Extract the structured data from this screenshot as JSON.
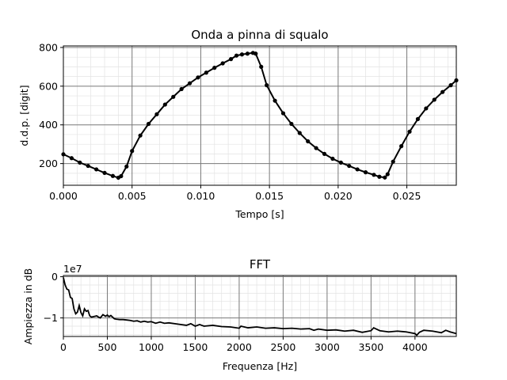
{
  "chart_data": [
    {
      "type": "scatter",
      "title": "Onda a pinna di squalo",
      "xlabel": "Tempo [s]",
      "ylabel": "d.d.p. [digit]",
      "xlim": [
        0.0,
        0.0286
      ],
      "ylim": [
        88,
        808
      ],
      "xticks": [
        0.0,
        0.005,
        0.01,
        0.015,
        0.02,
        0.025
      ],
      "xtick_labels": [
        "0.000",
        "0.005",
        "0.010",
        "0.015",
        "0.020",
        "0.025"
      ],
      "yticks": [
        200,
        400,
        600,
        800
      ],
      "ytick_labels": [
        "200",
        "400",
        "600",
        "800"
      ],
      "grid": "major and minor",
      "marker": "filled circle, connected by line",
      "color": "#000000",
      "points": [
        [
          0.0,
          248
        ],
        [
          0.0006,
          228
        ],
        [
          0.0012,
          205
        ],
        [
          0.0018,
          188
        ],
        [
          0.0024,
          170
        ],
        [
          0.003,
          152
        ],
        [
          0.0036,
          136
        ],
        [
          0.004,
          127
        ],
        [
          0.0042,
          135
        ],
        [
          0.0046,
          185
        ],
        [
          0.005,
          265
        ],
        [
          0.0056,
          345
        ],
        [
          0.0062,
          405
        ],
        [
          0.0068,
          455
        ],
        [
          0.0074,
          505
        ],
        [
          0.008,
          545
        ],
        [
          0.0086,
          585
        ],
        [
          0.0092,
          615
        ],
        [
          0.0098,
          645
        ],
        [
          0.0104,
          670
        ],
        [
          0.011,
          695
        ],
        [
          0.0116,
          718
        ],
        [
          0.0122,
          740
        ],
        [
          0.0126,
          758
        ],
        [
          0.013,
          764
        ],
        [
          0.0134,
          768
        ],
        [
          0.0138,
          772
        ],
        [
          0.014,
          768
        ],
        [
          0.0144,
          700
        ],
        [
          0.0148,
          605
        ],
        [
          0.0154,
          525
        ],
        [
          0.016,
          460
        ],
        [
          0.0166,
          405
        ],
        [
          0.0172,
          358
        ],
        [
          0.0178,
          315
        ],
        [
          0.0184,
          280
        ],
        [
          0.019,
          250
        ],
        [
          0.0196,
          225
        ],
        [
          0.0202,
          205
        ],
        [
          0.0208,
          188
        ],
        [
          0.0214,
          170
        ],
        [
          0.022,
          155
        ],
        [
          0.0226,
          142
        ],
        [
          0.023,
          132
        ],
        [
          0.0234,
          128
        ],
        [
          0.0236,
          145
        ],
        [
          0.024,
          210
        ],
        [
          0.0246,
          290
        ],
        [
          0.0252,
          365
        ],
        [
          0.0258,
          430
        ],
        [
          0.0264,
          485
        ],
        [
          0.027,
          530
        ],
        [
          0.0276,
          570
        ],
        [
          0.0282,
          605
        ],
        [
          0.0286,
          630
        ]
      ]
    },
    {
      "type": "line",
      "title": "FFT",
      "xlabel": "Frequenza [Hz]",
      "ylabel": "Ampiezza in dB",
      "offset_label": "1e7",
      "xlim": [
        0,
        4470
      ],
      "ylim": [
        -1.45,
        0.03
      ],
      "xticks": [
        0,
        500,
        1000,
        1500,
        2000,
        2500,
        3000,
        3500,
        4000
      ],
      "xtick_labels": [
        "0",
        "500",
        "1000",
        "1500",
        "2000",
        "2500",
        "3000",
        "3500",
        "4000"
      ],
      "yticks": [
        0,
        -1
      ],
      "ytick_labels": [
        "0",
        "−1"
      ],
      "grid": "major and minor",
      "color": "#000000",
      "x": [
        0,
        20,
        40,
        60,
        80,
        100,
        120,
        140,
        160,
        180,
        200,
        220,
        240,
        260,
        280,
        300,
        320,
        340,
        360,
        380,
        400,
        420,
        450,
        480,
        500,
        520,
        540,
        560,
        580,
        600,
        640,
        680,
        720,
        760,
        800,
        840,
        880,
        920,
        960,
        1000,
        1050,
        1100,
        1150,
        1200,
        1300,
        1400,
        1450,
        1500,
        1550,
        1600,
        1700,
        1800,
        1900,
        2000,
        2020,
        2100,
        2200,
        2300,
        2400,
        2500,
        2600,
        2700,
        2800,
        2850,
        2900,
        3000,
        3100,
        3200,
        3300,
        3400,
        3500,
        3530,
        3600,
        3700,
        3800,
        3900,
        4000,
        4020,
        4050,
        4100,
        4200,
        4300,
        4350,
        4400,
        4470
      ],
      "values": [
        -0.02,
        -0.2,
        -0.3,
        -0.32,
        -0.5,
        -0.53,
        -0.78,
        -0.9,
        -0.86,
        -0.7,
        -0.87,
        -0.95,
        -0.78,
        -0.84,
        -0.82,
        -0.95,
        -0.98,
        -0.97,
        -0.96,
        -0.95,
        -0.98,
        -1.0,
        -0.92,
        -0.96,
        -0.93,
        -0.97,
        -0.94,
        -0.98,
        -1.02,
        -1.03,
        -1.04,
        -1.04,
        -1.05,
        -1.06,
        -1.08,
        -1.07,
        -1.1,
        -1.08,
        -1.1,
        -1.09,
        -1.13,
        -1.1,
        -1.13,
        -1.12,
        -1.15,
        -1.18,
        -1.14,
        -1.2,
        -1.16,
        -1.2,
        -1.18,
        -1.21,
        -1.22,
        -1.25,
        -1.2,
        -1.24,
        -1.22,
        -1.25,
        -1.24,
        -1.26,
        -1.25,
        -1.27,
        -1.26,
        -1.3,
        -1.27,
        -1.3,
        -1.29,
        -1.32,
        -1.3,
        -1.35,
        -1.31,
        -1.24,
        -1.31,
        -1.34,
        -1.32,
        -1.34,
        -1.38,
        -1.42,
        -1.35,
        -1.3,
        -1.32,
        -1.36,
        -1.3,
        -1.34,
        -1.38
      ]
    }
  ]
}
